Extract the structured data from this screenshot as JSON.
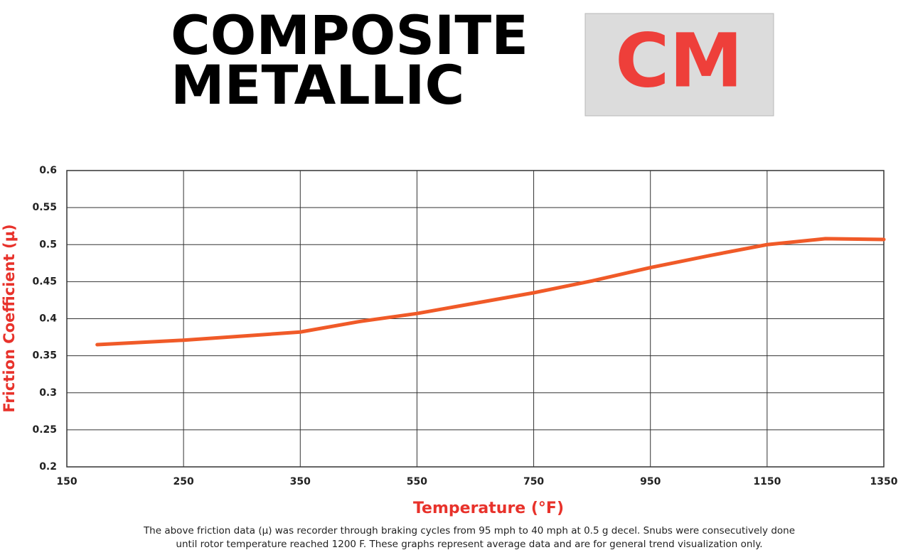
{
  "chart_data": {
    "type": "line",
    "title_lines": [
      "COMPOSITE",
      "METALLIC"
    ],
    "badge": "CM",
    "x_label": "Temperature (°F)",
    "y_label": "Friction Coefficient (µ)",
    "notes": [
      "The above friction data (µ) was recorder through braking cycles from 95 mph to 40 mph at 0.5 g decel. Snubs were consecutively done",
      "until rotor temperature reached 1200 F. These graphs represent average data and are for general trend visualization only."
    ],
    "x": [
      176,
      250,
      350,
      450,
      550,
      650,
      750,
      850,
      950,
      1050,
      1150,
      1250,
      1350
    ],
    "series": [
      {
        "color": "#f05a28",
        "values": [
          0.365,
          0.371,
          0.382,
          0.396,
          0.407,
          0.421,
          0.435,
          0.451,
          0.469,
          0.485,
          0.5,
          0.508,
          0.507
        ]
      }
    ],
    "xlim": [
      150,
      1350
    ],
    "xticks": [
      150,
      250,
      350,
      550,
      750,
      950,
      1150,
      1350
    ],
    "ylim": [
      0.2,
      0.6
    ],
    "yticks": [
      0.2,
      0.25,
      0.3,
      0.35,
      0.4,
      0.45,
      0.5,
      0.55,
      0.6
    ],
    "grid": true
  }
}
